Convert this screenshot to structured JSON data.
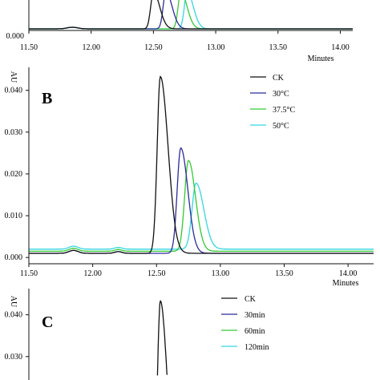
{
  "chart_data": [
    {
      "type": "line",
      "panel": "A",
      "xlabel": "Minutes",
      "x_ticks": [
        "11.50",
        "12.00",
        "12.50",
        "13.00",
        "13.50",
        "14.00"
      ],
      "y_ticks": [
        "0.000"
      ],
      "xlim": [
        11.5,
        14.1
      ],
      "series": [
        {
          "color": "#111111",
          "peak_x": 12.5,
          "baseline": 0.001
        },
        {
          "color": "#2b2b9a",
          "peak_x": 12.6,
          "baseline": 0.001
        },
        {
          "color": "#35c935",
          "peak_x": 12.72,
          "baseline": 0.002
        },
        {
          "color": "#34d6e0",
          "peak_x": 12.77,
          "baseline": 0.002
        }
      ]
    },
    {
      "type": "line",
      "panel": "B",
      "panel_label": "B",
      "ylabel": "AU",
      "xlabel": "Minutes",
      "x_ticks": [
        "11.50",
        "12.00",
        "12.50",
        "13.00",
        "13.50",
        "14.00"
      ],
      "y_ticks": [
        "0.000",
        "0.010",
        "0.020",
        "0.030",
        "0.040"
      ],
      "xlim": [
        11.5,
        14.2
      ],
      "ylim": [
        -0.0015,
        0.0455
      ],
      "legend_position": "top-right",
      "series": [
        {
          "name": "CK",
          "color": "#111111",
          "peak_x": 12.53,
          "peak_y": 0.0433,
          "width": 0.025,
          "tail": 0.06,
          "baseline": 0.001
        },
        {
          "name": "30°C",
          "color": "#2b2b9a",
          "peak_x": 12.69,
          "peak_y": 0.0262,
          "width": 0.028,
          "tail": 0.055,
          "baseline": 0.001
        },
        {
          "name": "37.5°C",
          "color": "#35c935",
          "peak_x": 12.75,
          "peak_y": 0.0232,
          "width": 0.03,
          "tail": 0.055,
          "baseline": 0.0015
        },
        {
          "name": "50°C",
          "color": "#34d6e0",
          "peak_x": 12.81,
          "peak_y": 0.0178,
          "width": 0.032,
          "tail": 0.06,
          "baseline": 0.002
        }
      ]
    },
    {
      "type": "line",
      "panel": "C",
      "panel_label": "C",
      "ylabel": "AU",
      "y_ticks": [
        "0.030",
        "0.040"
      ],
      "legend_position": "top-right",
      "series": [
        {
          "name": "CK",
          "color": "#111111",
          "peak_x": 12.53,
          "peak_y": 0.0433
        },
        {
          "name": "30min",
          "color": "#2b2b9a"
        },
        {
          "name": "60min",
          "color": "#35c935"
        },
        {
          "name": "120min",
          "color": "#34d6e0"
        }
      ]
    }
  ]
}
